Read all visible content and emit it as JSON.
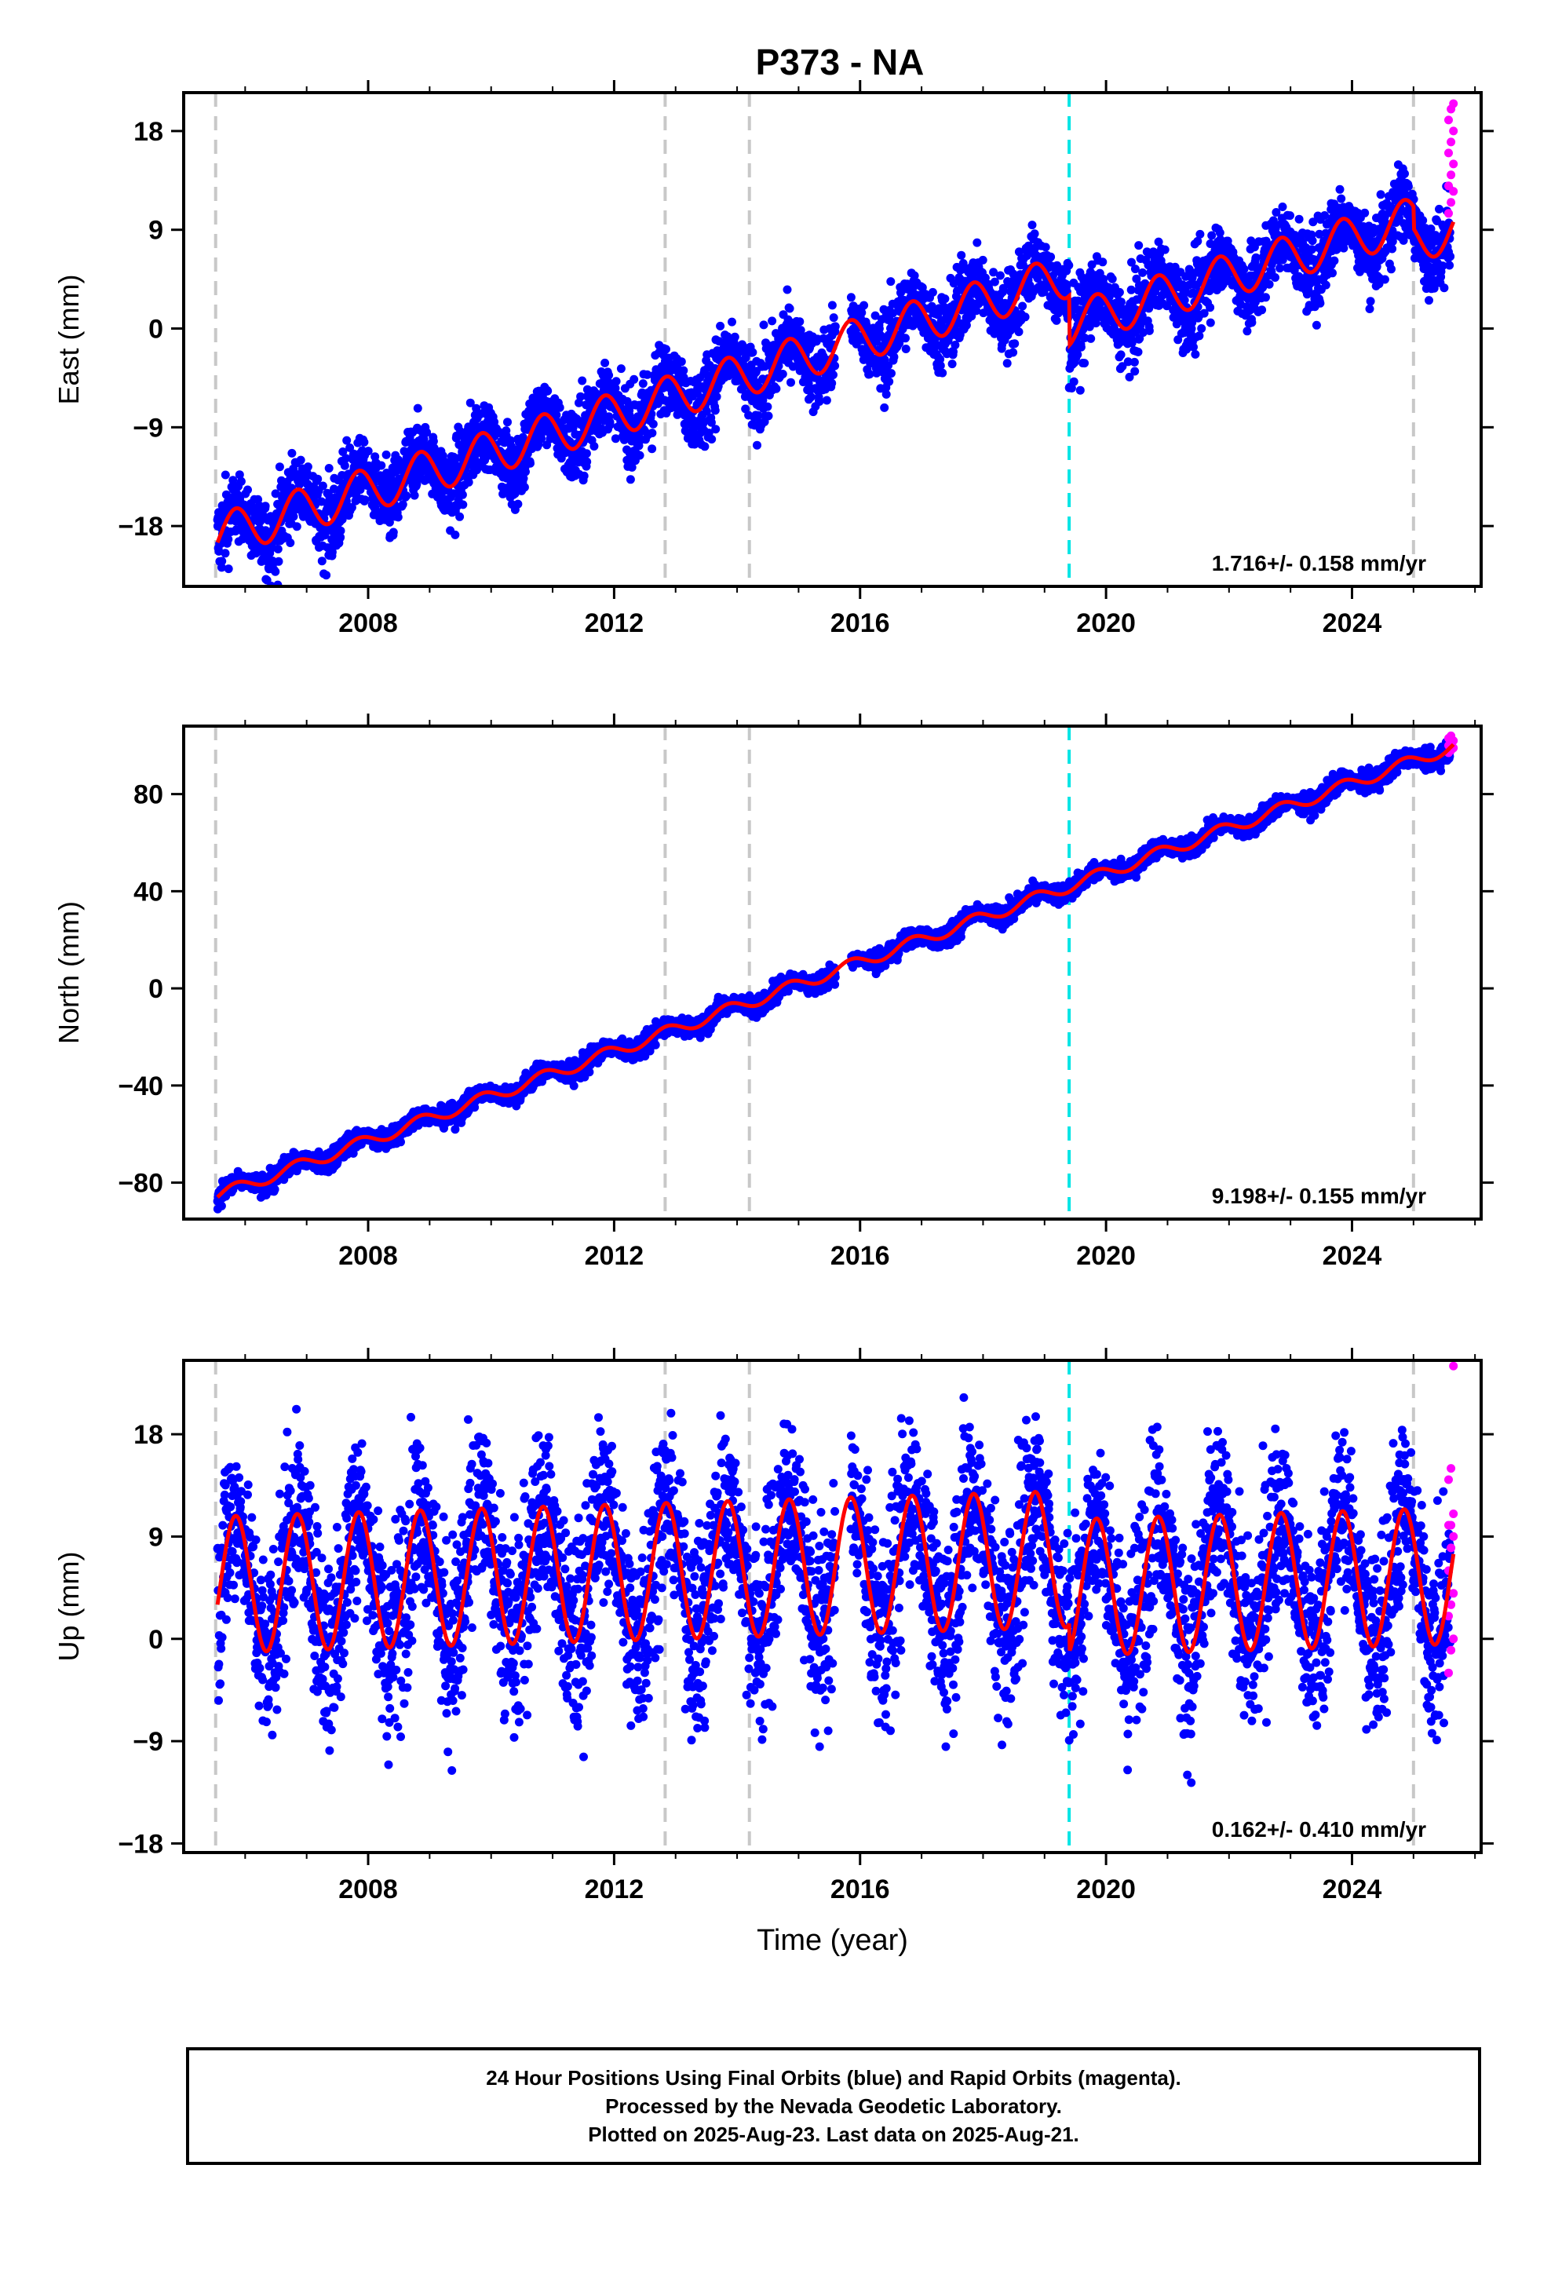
{
  "title": "P373 - NA",
  "note_lines": [
    "24 Hour Positions Using Final Orbits (blue) and Rapid Orbits (magenta).",
    "Processed by the Nevada Geodetic Laboratory.",
    "Plotted on 2025-Aug-23. Last data on 2025-Aug-21."
  ],
  "chart_data": [
    {
      "type": "scatter",
      "component": "east",
      "ylabel": "East (mm)",
      "xlim": [
        2005.0,
        2026.1
      ],
      "ylim": [
        -23.5,
        21.5
      ],
      "yticks": [
        -18,
        -9,
        0,
        9,
        18
      ],
      "xticks": [
        2008,
        2012,
        2016,
        2020,
        2024
      ],
      "rate_label": "1.716+/- 0.158 mm/yr",
      "model": {
        "start_year": 2005.55,
        "start_value": -19.5,
        "rate": 1.716,
        "amplitude": 2.0,
        "offsets": [
          {
            "year": 2019.4,
            "value": -4.5
          },
          {
            "year": 2025.0,
            "value": -2.0
          }
        ]
      },
      "gap": [
        2015.6,
        2015.85
      ],
      "scatter_spread": 1.6,
      "rapid_points": [
        10.5,
        11.5,
        12.5,
        13.0,
        14.0,
        15.0,
        16.0,
        17.0,
        18.0,
        19.0,
        20.0,
        20.5
      ]
    },
    {
      "type": "scatter",
      "component": "north",
      "ylabel": "North (mm)",
      "xlim": [
        2005.0,
        2026.1
      ],
      "ylim": [
        -95,
        108
      ],
      "yticks": [
        -80,
        -40,
        0,
        40,
        80
      ],
      "xticks": [
        2008,
        2012,
        2016,
        2020,
        2024
      ],
      "rate_label": "9.198+/- 0.155 mm/yr",
      "model": {
        "start_year": 2005.55,
        "start_value": -86,
        "rate": 9.198,
        "amplitude": 2.5,
        "offsets": []
      },
      "gap": [
        2015.6,
        2015.85
      ],
      "scatter_spread": 1.8,
      "rapid_points": [
        97,
        98,
        99,
        100,
        101,
        102,
        103,
        104
      ]
    },
    {
      "type": "scatter",
      "component": "up",
      "ylabel": "Up (mm)",
      "xlabel": "Time (year)",
      "xlim": [
        2005.0,
        2026.1
      ],
      "ylim": [
        -18.8,
        24.5
      ],
      "yticks": [
        -18,
        -9,
        0,
        9,
        18
      ],
      "xticks": [
        2008,
        2012,
        2016,
        2020,
        2024
      ],
      "rate_label": "0.162+/- 0.410 mm/yr",
      "model": {
        "start_year": 2005.55,
        "start_value": 3.0,
        "rate": 0.162,
        "amplitude": 6.0,
        "offsets": [
          {
            "year": 2019.4,
            "value": -2.5
          }
        ]
      },
      "gap": [
        2015.6,
        2015.85
      ],
      "scatter_spread": 3.8,
      "rapid_points": [
        -3,
        -1,
        0,
        2,
        3,
        4,
        6,
        8,
        9,
        10,
        10,
        11,
        14,
        15,
        24
      ]
    }
  ],
  "event_lines": [
    {
      "year": 2005.52,
      "color": "#c8c8c8"
    },
    {
      "year": 2012.83,
      "color": "#c8c8c8"
    },
    {
      "year": 2014.2,
      "color": "#c8c8c8"
    },
    {
      "year": 2019.4,
      "color": "#00e5e5"
    },
    {
      "year": 2025.0,
      "color": "#c8c8c8"
    }
  ],
  "colors": {
    "final_orbits": "#0000ff",
    "rapid_orbits": "#ff00ff",
    "model": "#ff0000"
  }
}
